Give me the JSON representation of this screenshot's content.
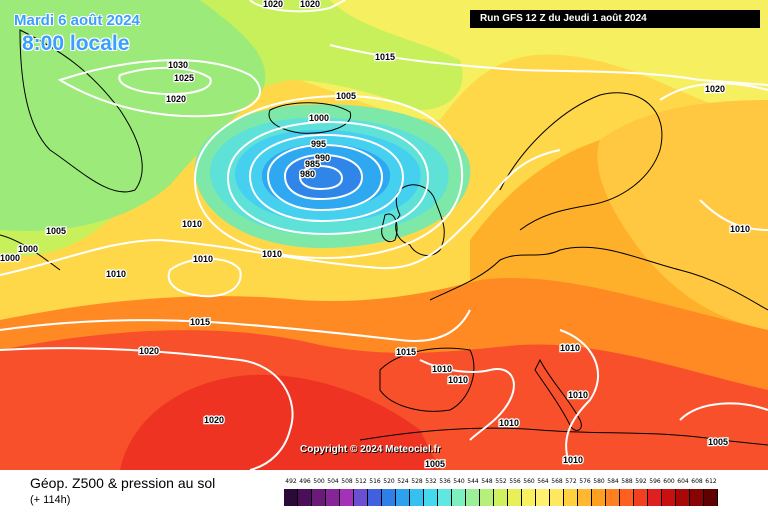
{
  "header": {
    "date": "Mardi 6 août 2024",
    "time": "8:00 locale",
    "run": "Run GFS 12 Z du Jeudi 1 août 2024"
  },
  "copyright": "Copyright © 2024 Meteociel.fr",
  "footer": {
    "title": "Géop. Z500 & pression au sol",
    "subtitle": "(+ 114h)"
  },
  "legend": {
    "values": [
      "492",
      "496",
      "500",
      "504",
      "508",
      "512",
      "516",
      "520",
      "524",
      "528",
      "532",
      "536",
      "540",
      "544",
      "548",
      "552",
      "556",
      "560",
      "564",
      "568",
      "572",
      "576",
      "580",
      "584",
      "588",
      "592",
      "596",
      "600",
      "604",
      "608",
      "612"
    ],
    "colors": [
      "#2b0a3a",
      "#4b0f59",
      "#6a1b7a",
      "#86249a",
      "#a332b6",
      "#6a4fd0",
      "#4060e0",
      "#2f7fe8",
      "#2ea0f0",
      "#36c0f0",
      "#46d8ee",
      "#5ee8e0",
      "#7ef0c0",
      "#9af09a",
      "#b6f07a",
      "#d0f060",
      "#e8f058",
      "#f8f060",
      "#fff070",
      "#ffe860",
      "#ffd040",
      "#ffb830",
      "#ffa020",
      "#ff8020",
      "#ff6020",
      "#f04020",
      "#e02020",
      "#c81010",
      "#a80808",
      "#880404",
      "#600000"
    ]
  },
  "isobar_labels": [
    {
      "text": "1020"
    },
    {
      "text": "1020"
    },
    {
      "text": "1015"
    },
    {
      "text": "1030"
    },
    {
      "text": "1025"
    },
    {
      "text": "1020"
    },
    {
      "text": "1005"
    },
    {
      "text": "1000"
    },
    {
      "text": "995"
    },
    {
      "text": "990"
    },
    {
      "text": "985"
    },
    {
      "text": "980"
    },
    {
      "text": "1020"
    },
    {
      "text": "1005"
    },
    {
      "text": "1000"
    },
    {
      "text": "1000"
    },
    {
      "text": "1010"
    },
    {
      "text": "1010"
    },
    {
      "text": "1010"
    },
    {
      "text": "1010"
    },
    {
      "text": "1010"
    },
    {
      "text": "1015"
    },
    {
      "text": "1020"
    },
    {
      "text": "1015"
    },
    {
      "text": "1010"
    },
    {
      "text": "1010"
    },
    {
      "text": "1010"
    },
    {
      "text": "1020"
    },
    {
      "text": "1010"
    },
    {
      "text": "1010"
    },
    {
      "text": "1005"
    },
    {
      "text": "1010"
    },
    {
      "text": "1005"
    }
  ]
}
